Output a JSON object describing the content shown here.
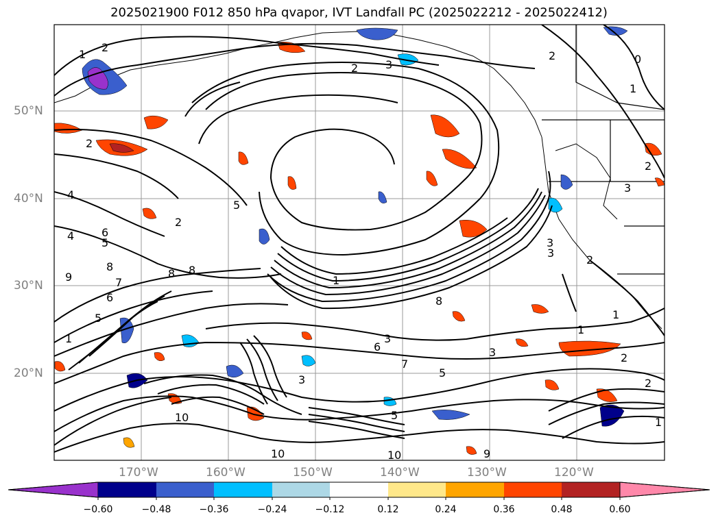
{
  "title": "2025021900 F012 850 hPa qvapor, IVT Landfall PC (2025022212 - 2025022412)",
  "lat_labels": [
    "50°N",
    "40°N",
    "30°N",
    "20°N"
  ],
  "lon_labels": [
    "170°W",
    "160°W",
    "150°W",
    "140°W",
    "130°W",
    "120°W"
  ],
  "colorbar": {
    "ticks": [
      "−0.60",
      "−0.48",
      "−0.36",
      "−0.24",
      "−0.12",
      "0.12",
      "0.24",
      "0.36",
      "0.48",
      "0.60"
    ],
    "colors": [
      "#9932cc",
      "#00008b",
      "#3a5fcd",
      "#00bfff",
      "#add8e6",
      "#ffffff",
      "#ffe88a",
      "#ffa500",
      "#ff4500",
      "#b22222",
      "#ff88aa"
    ]
  },
  "contour_labels": [
    "1",
    "2",
    "3",
    "4",
    "5",
    "6",
    "7",
    "8",
    "9",
    "10",
    "0"
  ]
}
